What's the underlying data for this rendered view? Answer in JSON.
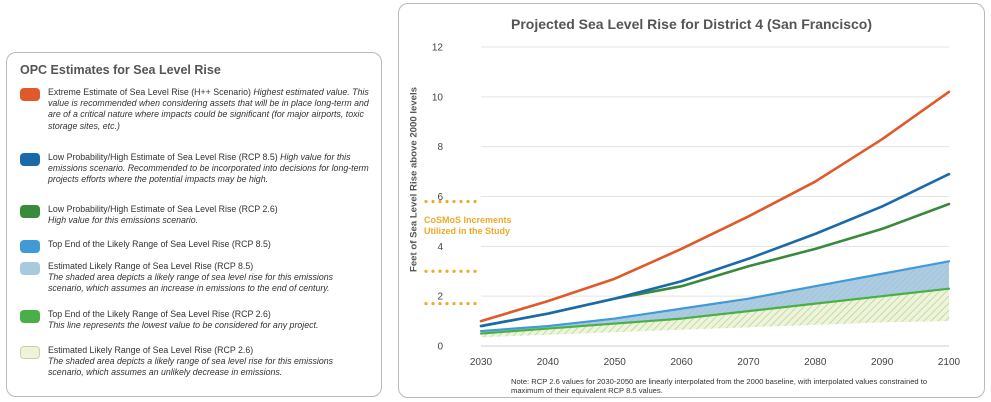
{
  "legend": {
    "title": "OPC Estimates for Sea Level Rise",
    "items": [
      {
        "label": "Extreme Estimate of Sea Level Rise (H++ Scenario)",
        "description": "Highest estimated value. This value is recommended when considering assets that will be in place long-term and are of a critical nature where impacts could be significant (for major airports, toxic storage sites, etc.)",
        "color": "#e0592a"
      },
      {
        "label": "Low Probability/High Estimate of Sea Level Rise (RCP 8.5)",
        "description": "High value for this emissions scenario. Recommended to be incorporated into decisions for long-term projects efforts where the potential impacts may be high.",
        "color": "#1a6aaa"
      },
      {
        "label": "Low Probability/High Estimate of Sea Level Rise (RCP 2.6)",
        "description": "High value for this emissions scenario.",
        "color": "#3a8a3c"
      },
      {
        "label": "Top End of the Likely Range of Sea Level Rise (RCP 8.5)",
        "description": "",
        "color": "#3f9ad6"
      },
      {
        "label": "Estimated Likely Range of Sea Level Rise (RCP 8.5)",
        "description": "The shaded area depicts a likely range of sea level rise for this emissions scenario, which assumes an increase in emissions to the end of century.",
        "color": "#a9c9df"
      },
      {
        "label": "Top End of the Likely Range of Sea Level Rise (RCP 2.6)",
        "description": "This line represents the lowest value to be considered for any project.",
        "color": "#49b048"
      },
      {
        "label": "Estimated Likely Range of Sea Level Rise (RCP 2.6)",
        "description": "The shaded area depicts a likely range of sea level rise for this emissions scenario, which assumes an unlikely decrease in emissions.",
        "color": "#eef4dc"
      }
    ]
  },
  "annotation": {
    "line1": "CoSMoS Increments",
    "line2": "Utilized in the Study",
    "color": "#f0a928",
    "levels": [
      1.7,
      3.0,
      5.8
    ]
  },
  "note": "Note: RCP 2.6 values for 2030-2050 are linearly interpolated from the 2000 baseline, with interpolated values constrained to maximum of their equivalent RCP 8.5 values.",
  "chart_data": {
    "type": "line",
    "title": "Projected Sea Level Rise for District 4 (San Francisco)",
    "ylabel": "Feet of Sea Level Rise above 2000 levels",
    "xlabel": "",
    "x": [
      2030,
      2040,
      2050,
      2060,
      2070,
      2080,
      2090,
      2100
    ],
    "xlim": [
      2030,
      2100
    ],
    "ylim": [
      0,
      12
    ],
    "yticks": [
      0,
      2,
      4,
      6,
      8,
      10,
      12
    ],
    "grid": true,
    "series": [
      {
        "name": "Extreme Estimate of Sea Level Rise (H++ Scenario)",
        "color": "#e0592a",
        "values": [
          1.0,
          1.8,
          2.7,
          3.9,
          5.2,
          6.6,
          8.3,
          10.2
        ]
      },
      {
        "name": "Low Probability/High Estimate of Sea Level Rise (RCP 8.5)",
        "color": "#1a6aaa",
        "values": [
          0.8,
          1.3,
          1.9,
          2.6,
          3.5,
          4.5,
          5.6,
          6.9
        ]
      },
      {
        "name": "Low Probability/High Estimate of Sea Level Rise (RCP 2.6)",
        "color": "#3a8a3c",
        "values": [
          0.8,
          1.3,
          1.9,
          2.4,
          3.2,
          3.9,
          4.7,
          5.7
        ]
      },
      {
        "name": "Top End of the Likely Range of Sea Level Rise (RCP 8.5)",
        "color": "#3f9ad6",
        "values": [
          0.6,
          0.8,
          1.1,
          1.5,
          1.9,
          2.4,
          2.9,
          3.4
        ]
      },
      {
        "name": "Top End of the Likely Range of Sea Level Rise (RCP 2.6)",
        "color": "#49b048",
        "values": [
          0.5,
          0.7,
          0.9,
          1.1,
          1.4,
          1.7,
          2.0,
          2.3
        ]
      }
    ],
    "ranges": [
      {
        "name": "Estimated Likely Range of Sea Level Rise (RCP 8.5)",
        "color": "#a9c9df",
        "upper": [
          0.6,
          0.8,
          1.1,
          1.5,
          1.9,
          2.4,
          2.9,
          3.4
        ],
        "lower": [
          0.4,
          0.5,
          0.6,
          0.7,
          0.8,
          0.9,
          1.0,
          1.1
        ]
      },
      {
        "name": "Estimated Likely Range of Sea Level Rise (RCP 2.6)",
        "color": "#eef4dc",
        "upper": [
          0.5,
          0.7,
          0.9,
          1.1,
          1.4,
          1.7,
          2.0,
          2.3
        ],
        "lower": [
          0.35,
          0.45,
          0.55,
          0.65,
          0.75,
          0.85,
          0.95,
          1.0
        ]
      }
    ]
  }
}
